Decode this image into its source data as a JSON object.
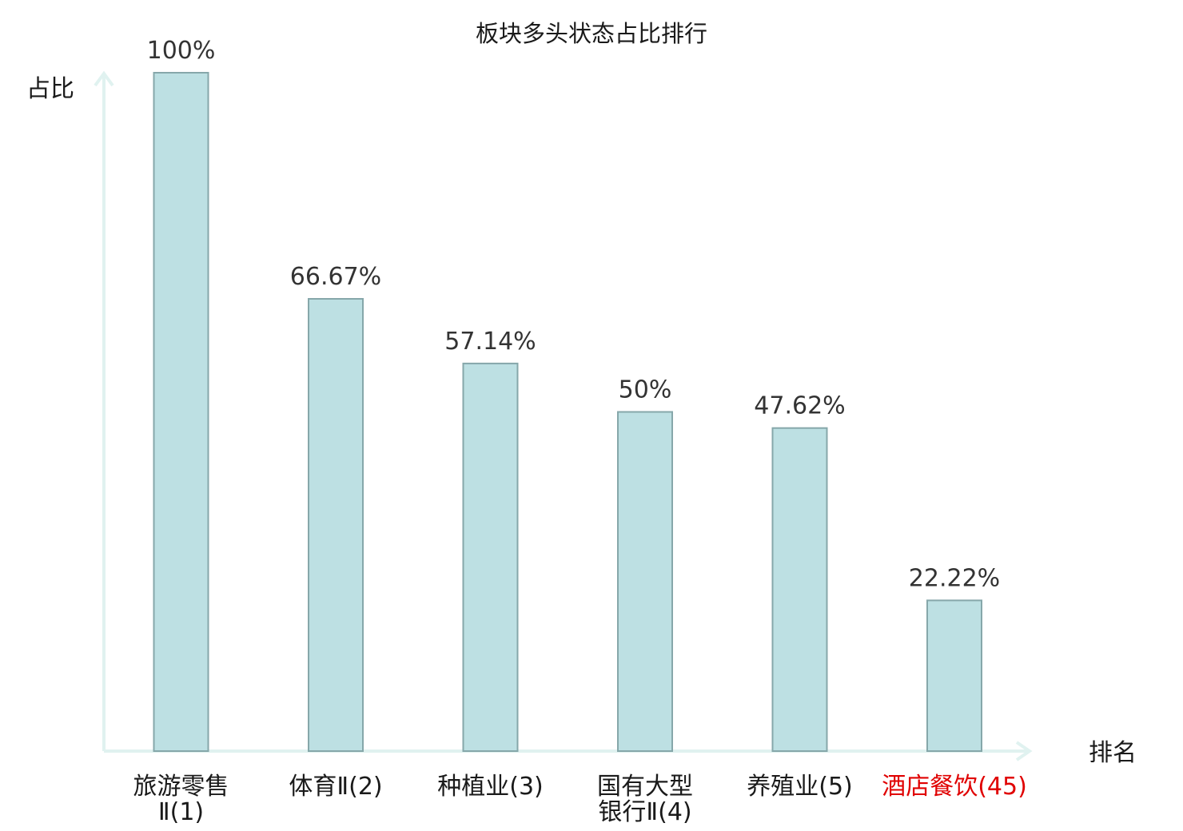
{
  "chart_data": {
    "type": "bar",
    "title": "板块多头状态占比排行",
    "ylabel": "占比",
    "xlabel": "排名",
    "ylim": [
      0,
      100
    ],
    "grid": false,
    "categories": [
      [
        "旅游零售",
        "Ⅱ(1)"
      ],
      [
        "体育Ⅱ(2)"
      ],
      [
        "种植业(3)"
      ],
      [
        "国有大型",
        "银行Ⅱ(4)"
      ],
      [
        "养殖业(5)"
      ],
      [
        "酒店餐饮(45)"
      ]
    ],
    "values": [
      100,
      66.67,
      57.14,
      50,
      47.62,
      22.22
    ],
    "value_labels": [
      "100%",
      "66.67%",
      "57.14%",
      "50%",
      "47.62%",
      "22.22%"
    ],
    "highlight_index": 5,
    "colors": {
      "bar_fill": "#bde0e3",
      "bar_stroke": "#86a7aa",
      "axis": "#e0f2f0",
      "highlight_text": "#e00000"
    }
  }
}
